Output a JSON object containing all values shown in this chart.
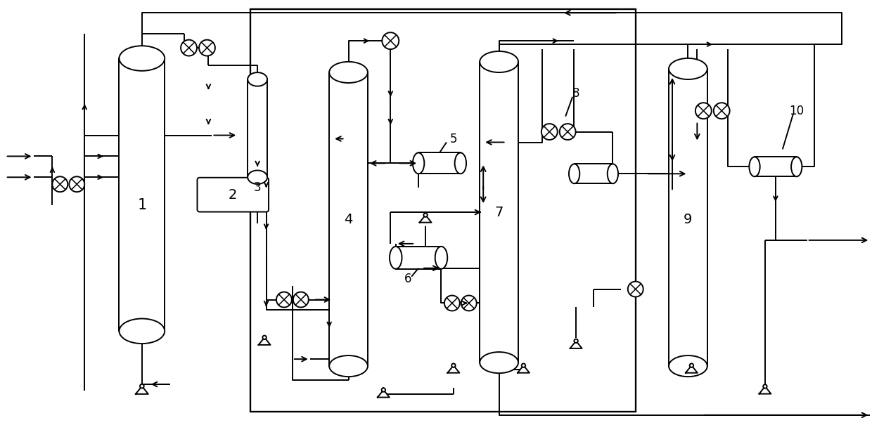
{
  "bg": "#ffffff",
  "lc": "#000000",
  "lw": 1.4,
  "fw": 12.4,
  "fh": 6.32
}
